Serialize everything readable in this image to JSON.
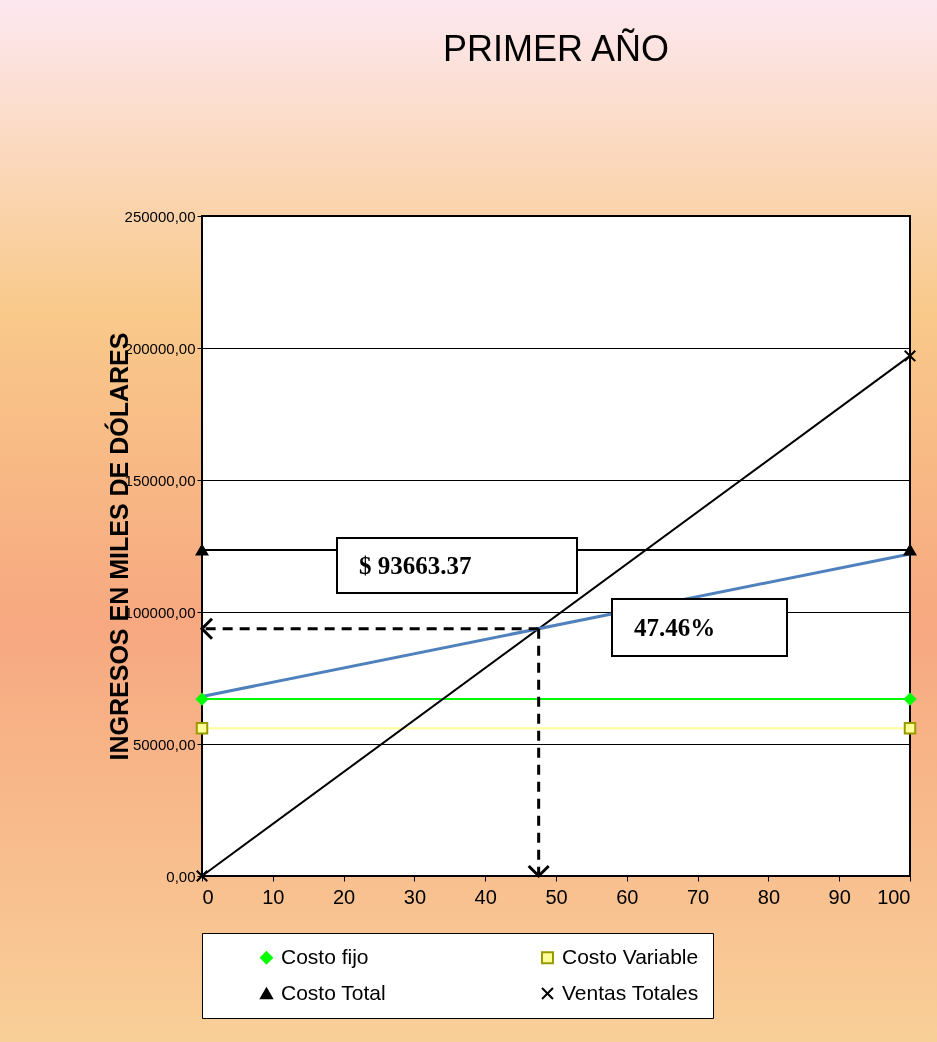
{
  "chart_data": {
    "type": "line",
    "title": "PRIMER  AÑO",
    "ylabel": "INGRESOS EN MILES DE DÓLARES",
    "x": [
      0,
      100
    ],
    "series": [
      {
        "name": "Costo fijo",
        "color": "#00ff00",
        "marker": "diamond",
        "values": [
          67000,
          67000
        ]
      },
      {
        "name": "Costo Variable",
        "color": "#ffff99",
        "marker": "square",
        "values": [
          56000,
          56000
        ]
      },
      {
        "name": "Costo Total",
        "color": "#000000",
        "marker": "triangle",
        "values": [
          123500,
          123500
        ]
      },
      {
        "name": "Ventas Totales",
        "color": "#000000",
        "marker": "cross",
        "values": [
          0,
          197000
        ]
      },
      {
        "color": "#4f81bd",
        "marker": "none",
        "values": [
          68000,
          122000
        ]
      }
    ],
    "xlim": [
      0,
      100
    ],
    "xticks": [
      0,
      10,
      20,
      30,
      40,
      50,
      60,
      70,
      80,
      90,
      100
    ],
    "ylim": [
      0,
      250000
    ],
    "yticks": [
      {
        "value": 0,
        "label": "0,00"
      },
      {
        "value": 50000,
        "label": "50000,00"
      },
      {
        "value": 100000,
        "label": "100000,00"
      },
      {
        "value": 150000,
        "label": "150000,00"
      },
      {
        "value": 200000,
        "label": "200000,00"
      },
      {
        "value": 250000,
        "label": "250000,00"
      }
    ],
    "annotations": [
      "$ 93663.37",
      "47.46%"
    ],
    "grid": "y",
    "legend": "bottom"
  }
}
